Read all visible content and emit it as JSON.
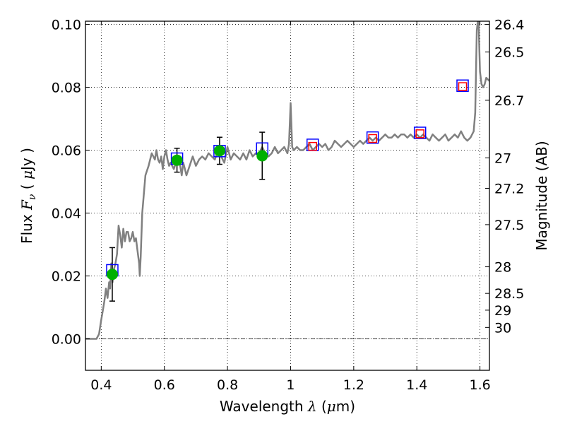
{
  "chart_data": {
    "type": "scatter",
    "title": "",
    "xlabel": "Wavelength  λ (μm)",
    "ylabel": "Flux  F_ν  ( μJy )",
    "ylabel_right": "Magnitude (AB)",
    "xlim": [
      0.35,
      1.63
    ],
    "ylim": [
      -0.01,
      0.101
    ],
    "grid": true,
    "x_ticks": [
      0.4,
      0.6,
      0.8,
      1.0,
      1.2,
      1.4,
      1.6
    ],
    "x_tick_labels": [
      "0.4",
      "0.6",
      "0.8",
      "1",
      "1.2",
      "1.4",
      "1.6"
    ],
    "y_ticks": [
      0.0,
      0.02,
      0.04,
      0.06,
      0.08,
      0.1
    ],
    "y_tick_labels": [
      "0.00",
      "0.02",
      "0.04",
      "0.06",
      "0.08",
      "0.10"
    ],
    "right_ticks": [
      {
        "label": "26.4",
        "mag": 26.4
      },
      {
        "label": "26.5",
        "mag": 26.5
      },
      {
        "label": "26.7",
        "mag": 26.7
      },
      {
        "label": "27",
        "mag": 27.0
      },
      {
        "label": "27.2",
        "mag": 27.2
      },
      {
        "label": "27.5",
        "mag": 27.5
      },
      {
        "label": "28",
        "mag": 28.0
      },
      {
        "label": "28.5",
        "mag": 28.5
      },
      {
        "label": "29",
        "mag": 29.0
      },
      {
        "label": "30",
        "mag": 30.0
      }
    ],
    "zero_line": 0.0,
    "series": [
      {
        "kind": "observed",
        "marker": "circle",
        "color": "#00b000",
        "points": [
          {
            "x": 0.435,
            "y": 0.0205,
            "err": 0.0085
          },
          {
            "x": 0.64,
            "y": 0.0568,
            "err": 0.0038
          },
          {
            "x": 0.775,
            "y": 0.0598,
            "err": 0.0043
          },
          {
            "x": 0.91,
            "y": 0.0582,
            "err": 0.0075
          }
        ]
      },
      {
        "kind": "model_blue",
        "marker": "square",
        "color": "#0000ff",
        "points": [
          {
            "x": 0.435,
            "y": 0.0218
          },
          {
            "x": 0.64,
            "y": 0.0573
          },
          {
            "x": 0.775,
            "y": 0.0597
          },
          {
            "x": 0.91,
            "y": 0.0605
          },
          {
            "x": 1.07,
            "y": 0.0617
          },
          {
            "x": 1.26,
            "y": 0.064
          },
          {
            "x": 1.41,
            "y": 0.0655
          },
          {
            "x": 1.545,
            "y": 0.0805
          }
        ]
      },
      {
        "kind": "model_red",
        "marker": "square",
        "color": "#ff0000",
        "points": [
          {
            "x": 1.07,
            "y": 0.0612
          },
          {
            "x": 1.26,
            "y": 0.0637
          },
          {
            "x": 1.41,
            "y": 0.0652
          },
          {
            "x": 1.545,
            "y": 0.0802
          }
        ]
      },
      {
        "kind": "spectrum",
        "marker": "line",
        "color": "#808080",
        "x": [
          0.35,
          0.37,
          0.385,
          0.393,
          0.4,
          0.405,
          0.41,
          0.415,
          0.42,
          0.425,
          0.428,
          0.432,
          0.436,
          0.44,
          0.445,
          0.45,
          0.455,
          0.46,
          0.465,
          0.47,
          0.475,
          0.48,
          0.485,
          0.49,
          0.495,
          0.5,
          0.505,
          0.51,
          0.515,
          0.52,
          0.522,
          0.525,
          0.53,
          0.54,
          0.55,
          0.56,
          0.565,
          0.57,
          0.575,
          0.58,
          0.585,
          0.59,
          0.595,
          0.6,
          0.605,
          0.61,
          0.615,
          0.62,
          0.63,
          0.64,
          0.65,
          0.655,
          0.66,
          0.665,
          0.67,
          0.68,
          0.69,
          0.7,
          0.71,
          0.72,
          0.73,
          0.74,
          0.75,
          0.76,
          0.77,
          0.78,
          0.79,
          0.8,
          0.81,
          0.82,
          0.83,
          0.84,
          0.85,
          0.86,
          0.87,
          0.88,
          0.89,
          0.9,
          0.91,
          0.92,
          0.93,
          0.94,
          0.95,
          0.96,
          0.97,
          0.98,
          0.99,
          0.995,
          1.0,
          1.005,
          1.01,
          1.02,
          1.03,
          1.04,
          1.05,
          1.06,
          1.07,
          1.08,
          1.09,
          1.1,
          1.11,
          1.12,
          1.13,
          1.14,
          1.15,
          1.16,
          1.17,
          1.18,
          1.19,
          1.2,
          1.21,
          1.22,
          1.23,
          1.24,
          1.25,
          1.26,
          1.27,
          1.28,
          1.29,
          1.3,
          1.31,
          1.32,
          1.33,
          1.34,
          1.35,
          1.36,
          1.37,
          1.38,
          1.39,
          1.4,
          1.41,
          1.42,
          1.43,
          1.44,
          1.45,
          1.46,
          1.47,
          1.48,
          1.49,
          1.5,
          1.51,
          1.52,
          1.53,
          1.54,
          1.55,
          1.56,
          1.57,
          1.58,
          1.585,
          1.59,
          1.595,
          1.6,
          1.605,
          1.61,
          1.615,
          1.62,
          1.63
        ],
        "y": [
          0.0,
          0.0,
          0.0,
          0.0015,
          0.006,
          0.009,
          0.012,
          0.016,
          0.013,
          0.018,
          0.016,
          0.024,
          0.018,
          0.022,
          0.024,
          0.027,
          0.036,
          0.033,
          0.029,
          0.035,
          0.031,
          0.034,
          0.034,
          0.031,
          0.032,
          0.034,
          0.031,
          0.032,
          0.028,
          0.024,
          0.02,
          0.026,
          0.04,
          0.052,
          0.055,
          0.059,
          0.058,
          0.057,
          0.06,
          0.057,
          0.056,
          0.058,
          0.054,
          0.058,
          0.06,
          0.057,
          0.055,
          0.056,
          0.054,
          0.057,
          0.055,
          0.052,
          0.056,
          0.054,
          0.052,
          0.055,
          0.058,
          0.055,
          0.057,
          0.058,
          0.057,
          0.059,
          0.058,
          0.057,
          0.06,
          0.058,
          0.056,
          0.061,
          0.057,
          0.059,
          0.058,
          0.057,
          0.059,
          0.057,
          0.06,
          0.058,
          0.059,
          0.059,
          0.061,
          0.059,
          0.058,
          0.059,
          0.061,
          0.059,
          0.06,
          0.061,
          0.059,
          0.062,
          0.075,
          0.061,
          0.06,
          0.061,
          0.06,
          0.06,
          0.061,
          0.062,
          0.06,
          0.061,
          0.062,
          0.061,
          0.062,
          0.06,
          0.061,
          0.063,
          0.062,
          0.061,
          0.062,
          0.063,
          0.062,
          0.061,
          0.062,
          0.063,
          0.062,
          0.063,
          0.064,
          0.063,
          0.064,
          0.063,
          0.064,
          0.065,
          0.064,
          0.064,
          0.065,
          0.064,
          0.065,
          0.065,
          0.064,
          0.065,
          0.064,
          0.065,
          0.064,
          0.065,
          0.064,
          0.063,
          0.065,
          0.064,
          0.063,
          0.064,
          0.065,
          0.063,
          0.064,
          0.065,
          0.064,
          0.066,
          0.064,
          0.063,
          0.064,
          0.066,
          0.072,
          0.098,
          0.103,
          0.085,
          0.081,
          0.08,
          0.081,
          0.083,
          0.082
        ]
      }
    ]
  }
}
